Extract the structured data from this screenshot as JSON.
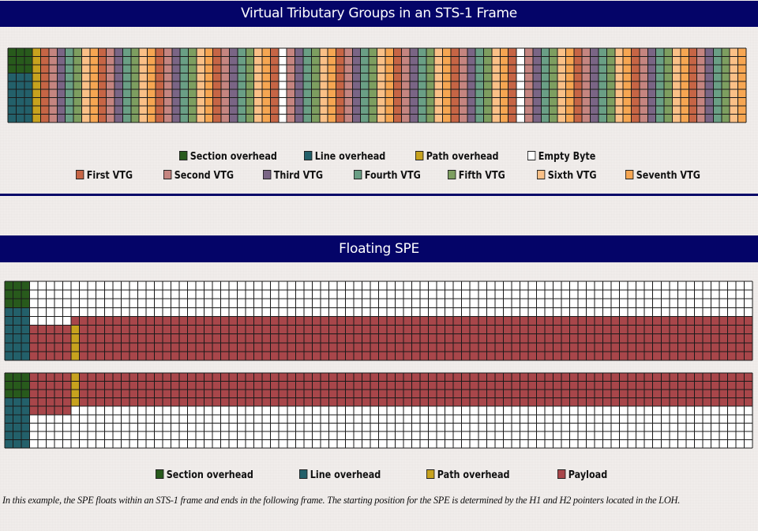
{
  "section1": {
    "title": "Virtual Tributary Groups in an STS-1 Frame",
    "legend_row1": [
      {
        "label": "Section overhead",
        "color": "#285a1c"
      },
      {
        "label": "Line overhead",
        "color": "#23606a"
      },
      {
        "label": "Path overhead",
        "color": "#c7a21e"
      },
      {
        "label": "Empty Byte",
        "color": "#ffffff"
      }
    ],
    "legend_row2": [
      {
        "label": "First VTG",
        "color": "#c66545"
      },
      {
        "label": "Second VTG",
        "color": "#c58580"
      },
      {
        "label": "Third VTG",
        "color": "#7a6585"
      },
      {
        "label": "Fourth VTG",
        "color": "#6a9f85"
      },
      {
        "label": "Fifth VTG",
        "color": "#7d9e60"
      },
      {
        "label": "Sixth VTG",
        "color": "#fac087"
      },
      {
        "label": "Seventh VTG",
        "color": "#f6a652"
      }
    ]
  },
  "section2": {
    "title": "Floating SPE",
    "legend": [
      {
        "label": "Section overhead",
        "color": "#285a1c"
      },
      {
        "label": "Line overhead",
        "color": "#23606a"
      },
      {
        "label": "Path overhead",
        "color": "#c7a21e"
      },
      {
        "label": "Payload",
        "color": "#a8464a"
      }
    ],
    "caption": "In this example, the SPE floats within an STS-1 frame and ends in the following frame. The starting position for the SPE is determined by the H1 and H2 pointers located in the LOH."
  }
}
